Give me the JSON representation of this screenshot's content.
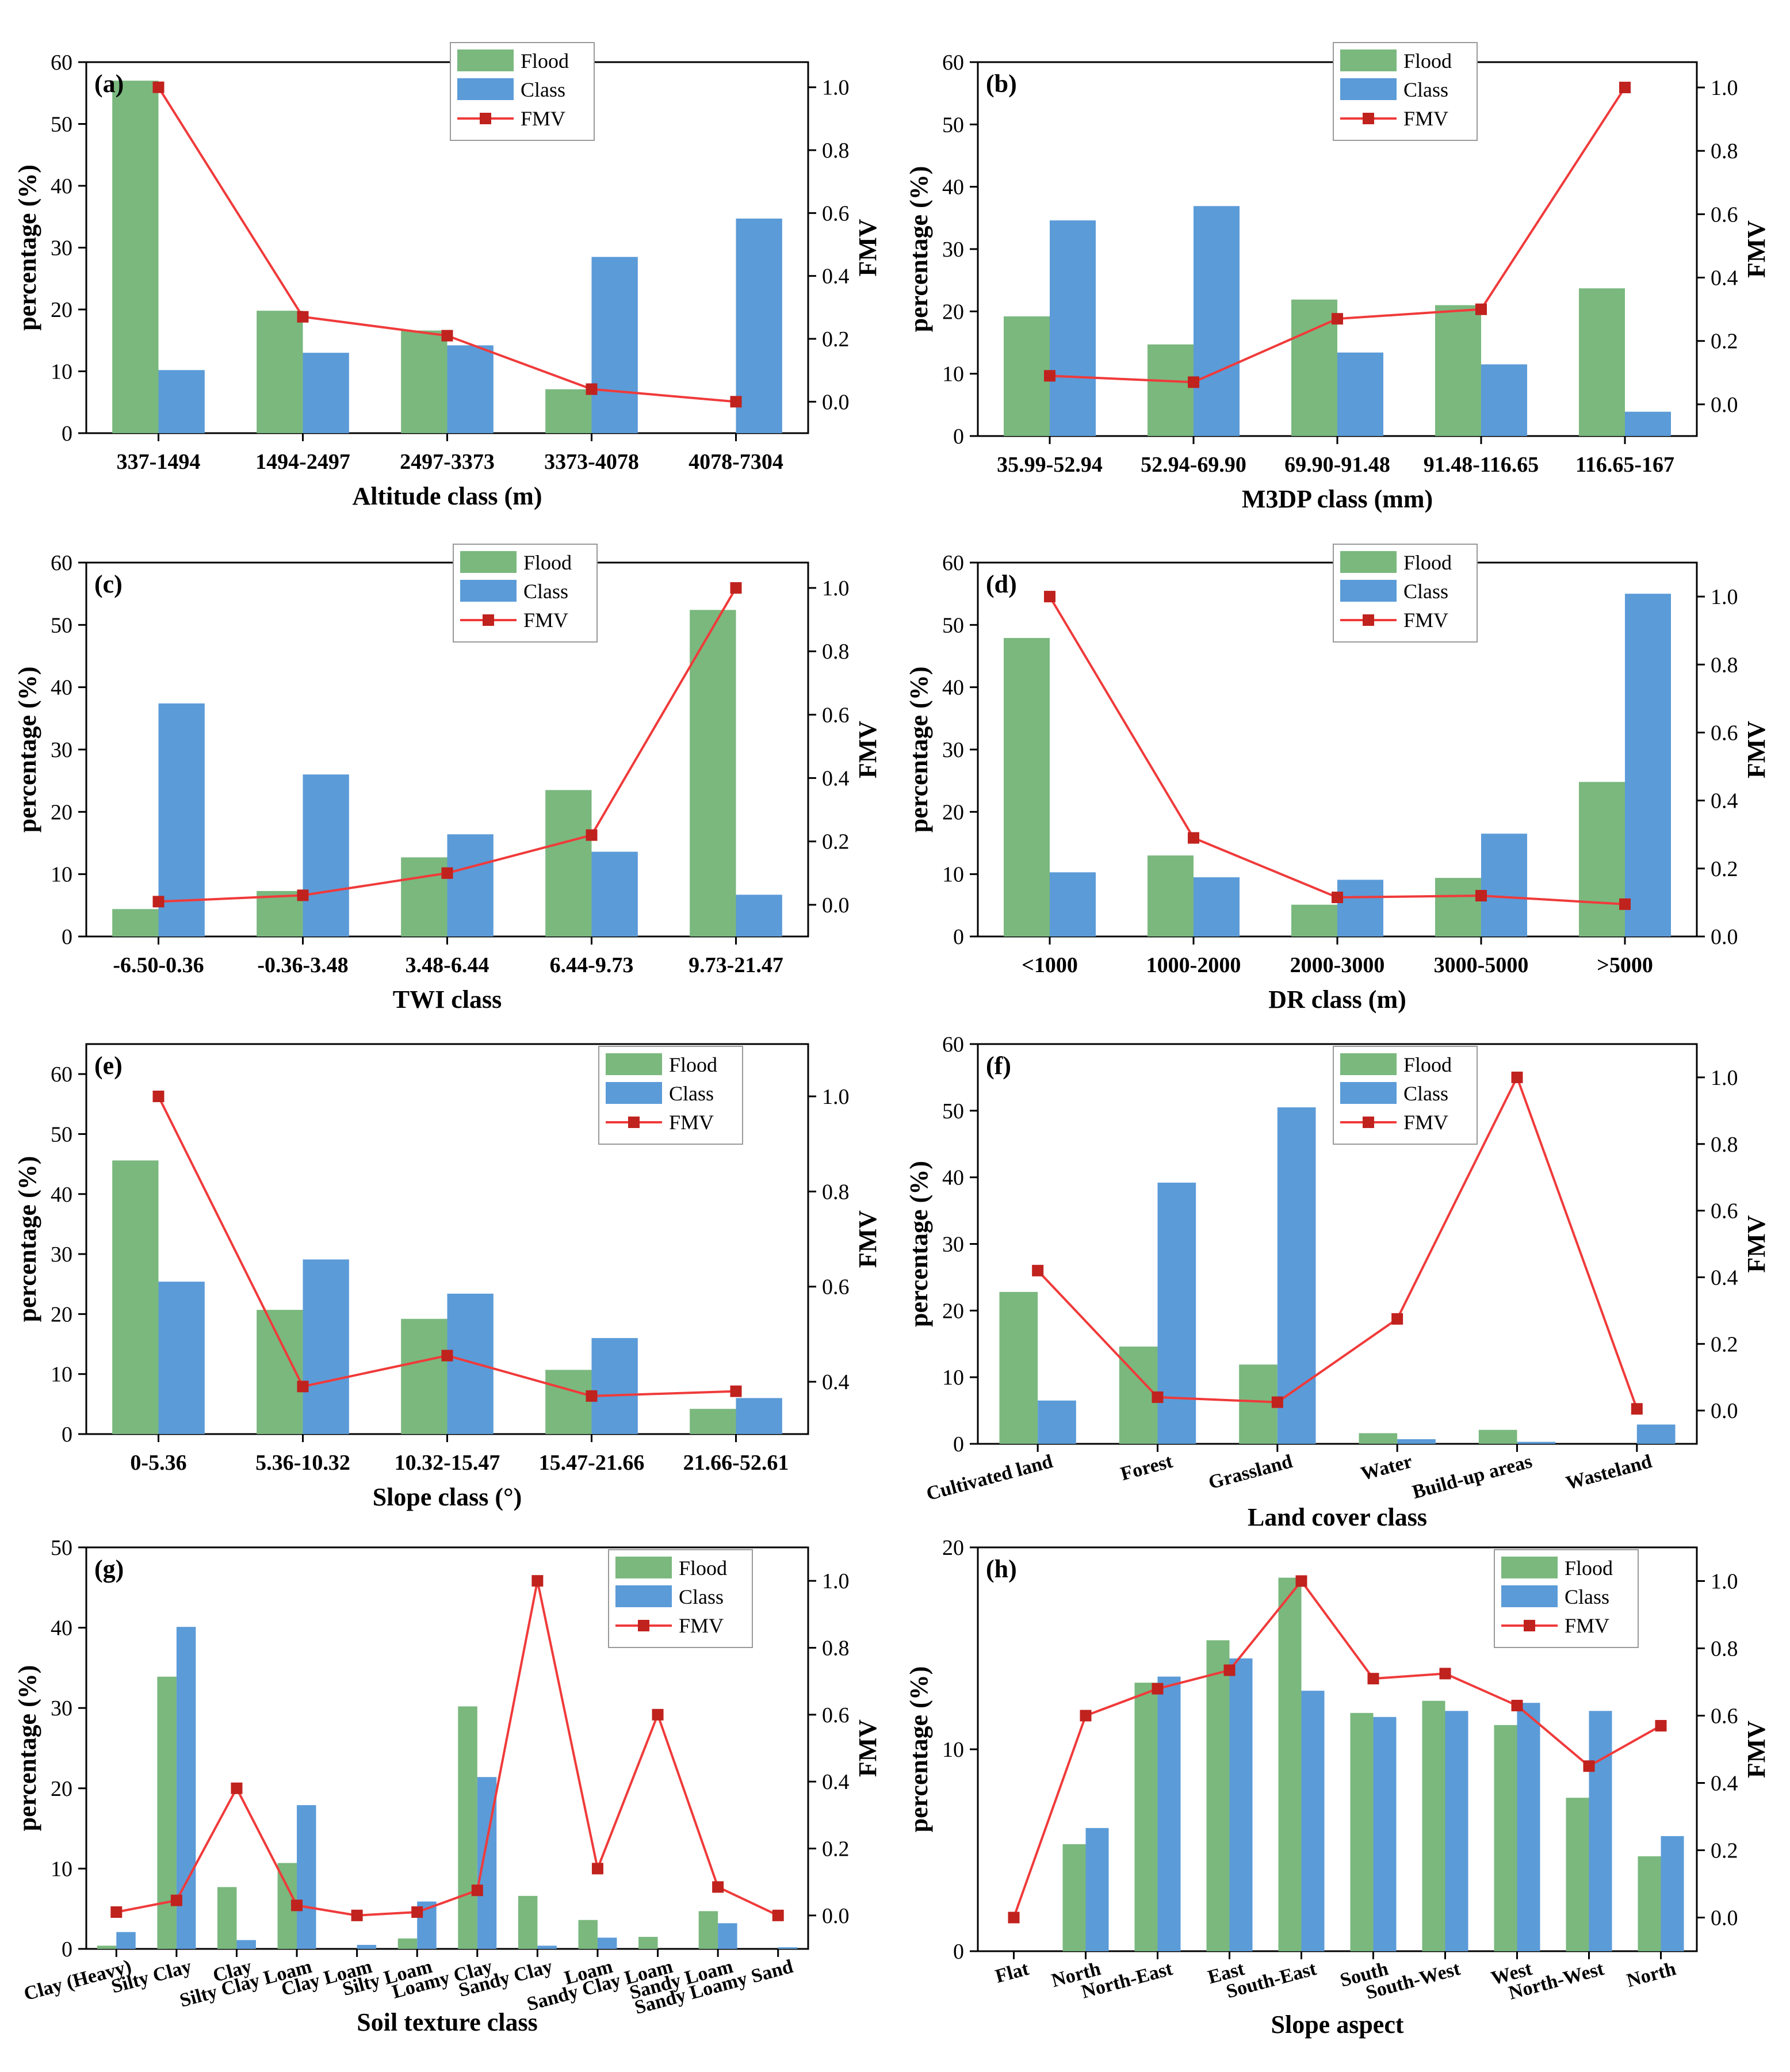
{
  "figure": {
    "legend_labels": {
      "flood": "Flood",
      "class": "Class",
      "fmv": "FMV"
    },
    "left_axis_label": "percentage (%)",
    "right_axis_label": "FMV",
    "colors": {
      "flood": "#7ab87e",
      "class": "#5b9bd8",
      "fmv": "#f03a3a",
      "marker": "#c0221e",
      "axis": "#000000"
    }
  },
  "chart_data": [
    {
      "id": "a",
      "label": "(a)",
      "type": "bar",
      "xlabel": "Altitude class (m)",
      "ylabel": "percentage (%)",
      "y2label": "FMV",
      "categories": [
        "337-1494",
        "1494-2497",
        "2497-3373",
        "3373-4078",
        "4078-7304"
      ],
      "series": [
        {
          "name": "Flood",
          "values": [
            57,
            19.8,
            16.6,
            7.1,
            0
          ]
        },
        {
          "name": "Class",
          "values": [
            10.2,
            13,
            14.2,
            28.5,
            34.7
          ]
        }
      ],
      "fmv": [
        1.0,
        0.27,
        0.21,
        0.04,
        0.0
      ],
      "ylim": [
        0,
        60
      ],
      "yticks": [
        0,
        10,
        20,
        30,
        40,
        50,
        60
      ],
      "y2lim": [
        -0.1,
        1.08
      ],
      "y2ticks": [
        "0.0",
        "0.2",
        "0.4",
        "0.6",
        "0.8",
        "1.0"
      ],
      "rotate": false
    },
    {
      "id": "b",
      "label": "(b)",
      "type": "bar",
      "xlabel": "M3DP class (mm)",
      "ylabel": "percentage (%)",
      "y2label": "FMV",
      "categories": [
        "35.99-52.94",
        "52.94-69.90",
        "69.90-91.48",
        "91.48-116.65",
        "116.65-167"
      ],
      "series": [
        {
          "name": "Flood",
          "values": [
            19.2,
            14.7,
            21.9,
            21,
            23.7
          ]
        },
        {
          "name": "Class",
          "values": [
            34.6,
            36.9,
            13.4,
            11.5,
            3.9
          ]
        }
      ],
      "fmv": [
        0.09,
        0.07,
        0.27,
        0.3,
        1.0
      ],
      "ylim": [
        0,
        60
      ],
      "yticks": [
        0,
        10,
        20,
        30,
        40,
        50,
        60
      ],
      "y2lim": [
        -0.1,
        1.08
      ],
      "y2ticks": [
        "0.0",
        "0.2",
        "0.4",
        "0.6",
        "0.8",
        "1.0"
      ],
      "rotate": false
    },
    {
      "id": "c",
      "label": "(c)",
      "type": "bar",
      "xlabel": "TWI class",
      "ylabel": "percentage (%)",
      "y2label": "FMV",
      "categories": [
        "-6.50-0.36",
        "-0.36-3.48",
        "3.48-6.44",
        "6.44-9.73",
        "9.73-21.47"
      ],
      "series": [
        {
          "name": "Flood",
          "values": [
            4.4,
            7.3,
            12.7,
            23.5,
            52.4
          ]
        },
        {
          "name": "Class",
          "values": [
            37.4,
            26,
            16.4,
            13.6,
            6.7
          ]
        }
      ],
      "fmv": [
        0.01,
        0.03,
        0.1,
        0.22,
        1.0
      ],
      "ylim": [
        0,
        60
      ],
      "yticks": [
        0,
        10,
        20,
        30,
        40,
        50,
        60
      ],
      "y2lim": [
        -0.1,
        1.08
      ],
      "y2ticks": [
        "0.0",
        "0.2",
        "0.4",
        "0.6",
        "0.8",
        "1.0"
      ],
      "rotate": false
    },
    {
      "id": "d",
      "label": "(d)",
      "type": "bar",
      "xlabel": "DR class (m)",
      "ylabel": "percentage (%)",
      "y2label": "FMV",
      "categories": [
        "<1000",
        "1000-2000",
        "2000-3000",
        "3000-5000",
        ">5000"
      ],
      "series": [
        {
          "name": "Flood",
          "values": [
            47.9,
            13,
            5.1,
            9.4,
            24.8
          ]
        },
        {
          "name": "Class",
          "values": [
            10.3,
            9.5,
            9.1,
            16.5,
            55
          ]
        }
      ],
      "fmv": [
        1.0,
        0.29,
        0.115,
        0.12,
        0.095
      ],
      "ylim": [
        0,
        60
      ],
      "yticks": [
        0,
        10,
        20,
        30,
        40,
        50,
        60
      ],
      "y2lim": [
        0,
        1.1
      ],
      "y2ticks": [
        "0.0",
        "0.2",
        "0.4",
        "0.6",
        "0.8",
        "1.0"
      ],
      "rotate": false
    },
    {
      "id": "e",
      "label": "(e)",
      "type": "bar",
      "xlabel": "Slope class (°)",
      "ylabel": "percentage (%)",
      "y2label": "FMV",
      "categories": [
        "0-5.36",
        "5.36-10.32",
        "10.32-15.47",
        "15.47-21.66",
        "21.66-52.61"
      ],
      "series": [
        {
          "name": "Flood",
          "values": [
            45.6,
            20.7,
            19.2,
            10.7,
            4.2
          ]
        },
        {
          "name": "Class",
          "values": [
            25.4,
            29.1,
            23.4,
            16,
            6
          ]
        }
      ],
      "fmv": [
        1.0,
        0.39,
        0.455,
        0.37,
        0.38
      ],
      "ylim": [
        0,
        65
      ],
      "yticks": [
        0,
        10,
        20,
        30,
        40,
        50,
        60
      ],
      "y2lim": [
        0.29,
        1.11
      ],
      "y2ticks": [
        "0.4",
        "0.6",
        "0.8",
        "1.0"
      ],
      "rotate": false
    },
    {
      "id": "f",
      "label": "(f)",
      "type": "bar",
      "xlabel": "Land cover class",
      "ylabel": "percentage (%)",
      "y2label": "FMV",
      "categories": [
        "Cultivated land",
        "Forest",
        "Grassland",
        "Water",
        "Build-up areas",
        "Wasteland"
      ],
      "series": [
        {
          "name": "Flood",
          "values": [
            22.8,
            14.6,
            11.9,
            1.6,
            2.1,
            0
          ]
        },
        {
          "name": "Class",
          "values": [
            6.5,
            39.2,
            50.5,
            0.7,
            0.3,
            2.9
          ]
        }
      ],
      "fmv": [
        0.42,
        0.04,
        0.025,
        0.275,
        1.0,
        0.005
      ],
      "ylim": [
        0,
        60
      ],
      "yticks": [
        0,
        10,
        20,
        30,
        40,
        50,
        60
      ],
      "y2lim": [
        -0.1,
        1.1
      ],
      "y2ticks": [
        "0.0",
        "0.2",
        "0.4",
        "0.6",
        "0.8",
        "1.0"
      ],
      "rotate": true
    },
    {
      "id": "g",
      "label": "(g)",
      "type": "bar",
      "xlabel": "Soil texture class",
      "ylabel": "percentage (%)",
      "y2label": "FMV",
      "categories": [
        "Clay (Heavy)",
        "Silty Clay",
        "Clay",
        "Silty Clay Loam",
        "Clay Loam",
        "Silty Loam",
        "Loamy Clay",
        "Sandy Clay",
        "Loam",
        "Sandy Clay Loam",
        "Sandy Loam",
        "Sandy Loamy Sand"
      ],
      "series": [
        {
          "name": "Flood",
          "values": [
            0.4,
            33.9,
            7.7,
            10.7,
            0,
            1.3,
            30.2,
            6.6,
            3.6,
            1.5,
            4.7,
            0
          ]
        },
        {
          "name": "Class",
          "values": [
            2.1,
            40.1,
            1.1,
            17.9,
            0.5,
            5.9,
            21.4,
            0.4,
            1.4,
            0,
            3.2,
            0.2
          ]
        }
      ],
      "fmv": [
        0.01,
        0.045,
        0.38,
        0.03,
        0.0,
        0.01,
        0.075,
        1.0,
        0.14,
        0.6,
        0.085,
        0.0
      ],
      "ylim": [
        0,
        50
      ],
      "yticks": [
        0,
        10,
        20,
        30,
        40,
        50
      ],
      "y2lim": [
        -0.1,
        1.1
      ],
      "y2ticks": [
        "0.0",
        "0.2",
        "0.4",
        "0.6",
        "0.8",
        "1.0"
      ],
      "rotate": true
    },
    {
      "id": "h",
      "label": "(h)",
      "type": "bar",
      "xlabel": "Slope aspect",
      "ylabel": "percentage (%)",
      "y2label": "FMV",
      "categories": [
        "Flat",
        "North",
        "North-East",
        "East",
        "South-East",
        "South",
        "South-West",
        "West",
        "North-West",
        "North"
      ],
      "series": [
        {
          "name": "Flood",
          "values": [
            0,
            5.3,
            13.3,
            15.4,
            18.5,
            11.8,
            12.4,
            11.2,
            7.6,
            4.7
          ]
        },
        {
          "name": "Class",
          "values": [
            0,
            6.1,
            13.6,
            14.5,
            12.9,
            11.6,
            11.9,
            12.3,
            11.9,
            5.7
          ]
        }
      ],
      "fmv": [
        0.0,
        0.6,
        0.68,
        0.735,
        1.0,
        0.71,
        0.725,
        0.63,
        0.45,
        0.57
      ],
      "ylim": [
        0,
        20
      ],
      "yticks": [
        0,
        10,
        20
      ],
      "y2lim": [
        -0.1,
        1.1
      ],
      "y2ticks": [
        "0.0",
        "0.2",
        "0.4",
        "0.6",
        "0.8",
        "1.0"
      ],
      "rotate": true
    }
  ]
}
